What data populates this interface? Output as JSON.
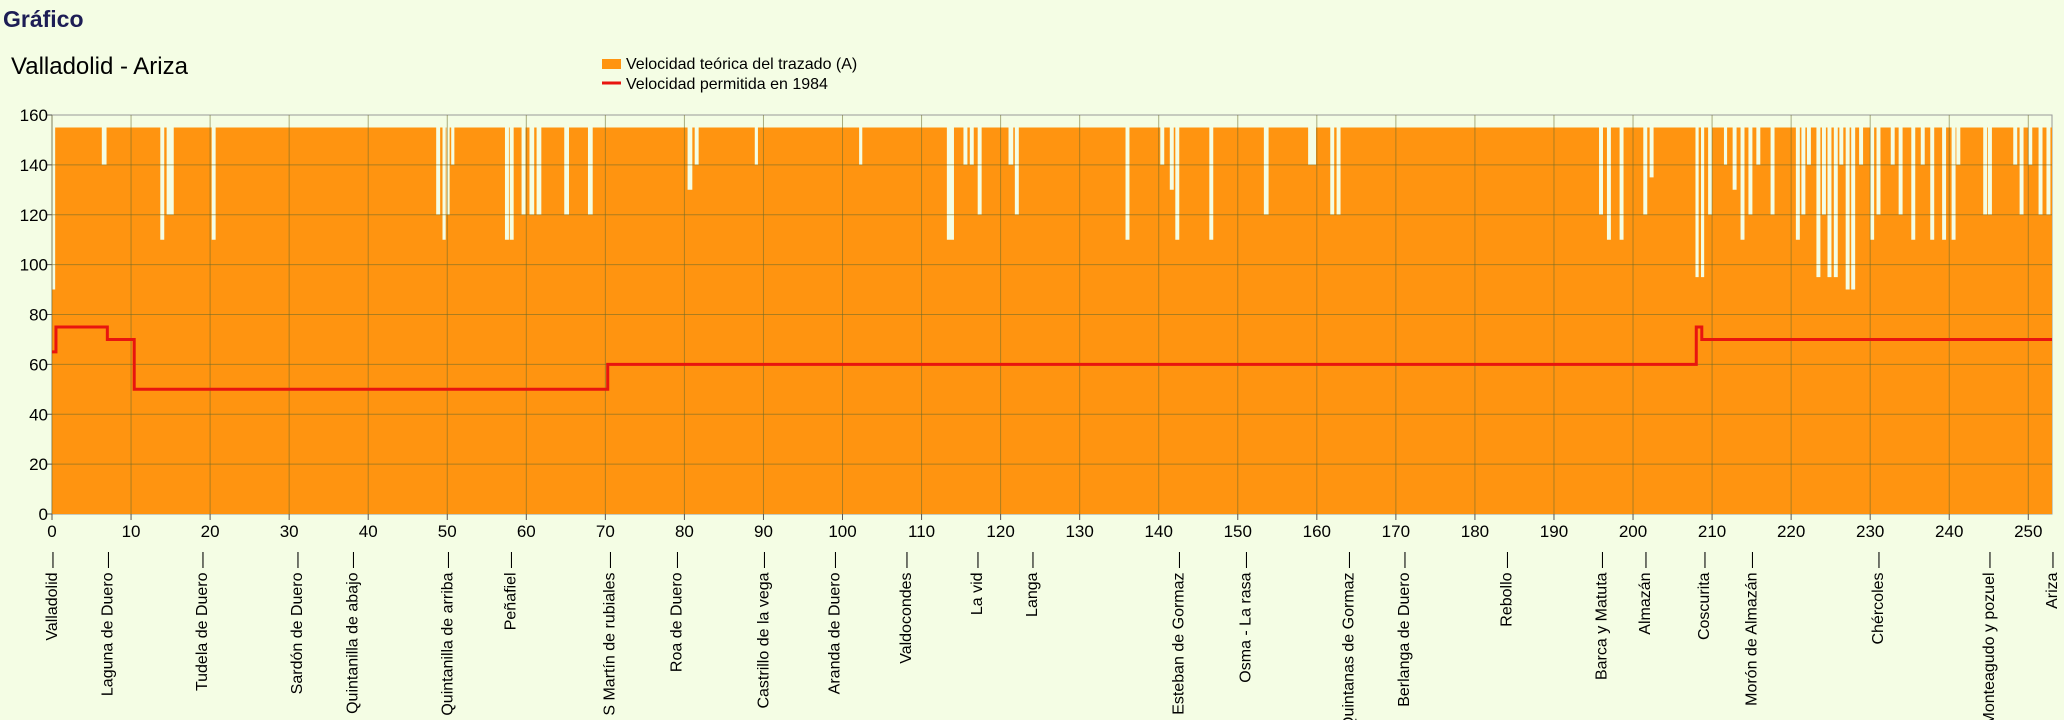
{
  "page": {
    "heading": "Gráfico"
  },
  "chart_data": {
    "type": "area",
    "title": "Valladolid - Ariza",
    "xlim": [
      0,
      253
    ],
    "ylim": [
      0,
      160
    ],
    "x_ticks": [
      0,
      10,
      20,
      30,
      40,
      50,
      60,
      70,
      80,
      90,
      100,
      110,
      120,
      130,
      140,
      150,
      160,
      170,
      180,
      190,
      200,
      210,
      220,
      230,
      240,
      250
    ],
    "y_ticks": [
      0,
      20,
      40,
      60,
      80,
      100,
      120,
      140,
      160
    ],
    "grid": true,
    "legend_position": "top",
    "colors": {
      "teorica": "#ff9410",
      "permitida": "#e8150f",
      "grid": "#6a6a2a",
      "background": "#f4fde4"
    },
    "series": [
      {
        "name": "Velocidad teórica del trazado (A)",
        "kind": "area",
        "base_value": 155,
        "dips": [
          [
            0.0,
            0.4,
            90
          ],
          [
            6.3,
            6.9,
            140
          ],
          [
            13.7,
            14.2,
            110
          ],
          [
            14.5,
            15.4,
            120
          ],
          [
            20.2,
            20.7,
            110
          ],
          [
            48.6,
            49.1,
            120
          ],
          [
            49.4,
            49.8,
            110
          ],
          [
            49.9,
            50.3,
            120
          ],
          [
            50.5,
            50.9,
            140
          ],
          [
            57.3,
            57.8,
            110
          ],
          [
            57.9,
            58.4,
            110
          ],
          [
            59.4,
            59.9,
            120
          ],
          [
            60.4,
            61.0,
            120
          ],
          [
            61.3,
            61.9,
            120
          ],
          [
            64.8,
            65.4,
            120
          ],
          [
            67.8,
            68.4,
            120
          ],
          [
            80.4,
            81.0,
            130
          ],
          [
            81.3,
            81.8,
            140
          ],
          [
            88.9,
            89.3,
            140
          ],
          [
            102.1,
            102.5,
            140
          ],
          [
            113.2,
            114.1,
            110
          ],
          [
            115.3,
            115.8,
            140
          ],
          [
            116.1,
            116.6,
            140
          ],
          [
            117.1,
            117.6,
            120
          ],
          [
            121.0,
            121.6,
            140
          ],
          [
            121.8,
            122.3,
            120
          ],
          [
            135.8,
            136.3,
            110
          ],
          [
            140.2,
            140.7,
            140
          ],
          [
            141.4,
            141.9,
            130
          ],
          [
            142.1,
            142.6,
            110
          ],
          [
            146.4,
            146.9,
            110
          ],
          [
            153.3,
            153.9,
            120
          ],
          [
            158.9,
            159.9,
            140
          ],
          [
            161.7,
            162.2,
            120
          ],
          [
            162.5,
            163.0,
            120
          ],
          [
            195.7,
            196.2,
            120
          ],
          [
            196.7,
            197.2,
            110
          ],
          [
            198.3,
            198.8,
            110
          ],
          [
            201.3,
            201.8,
            120
          ],
          [
            202.1,
            202.6,
            135
          ],
          [
            207.9,
            208.3,
            95
          ],
          [
            208.6,
            209.0,
            95
          ],
          [
            209.5,
            210.0,
            120
          ],
          [
            211.5,
            211.9,
            140
          ],
          [
            212.6,
            213.1,
            130
          ],
          [
            213.6,
            214.1,
            110
          ],
          [
            214.6,
            215.1,
            120
          ],
          [
            215.6,
            216.1,
            140
          ],
          [
            217.4,
            217.9,
            120
          ],
          [
            220.6,
            221.1,
            110
          ],
          [
            221.3,
            221.8,
            120
          ],
          [
            222.0,
            222.5,
            140
          ],
          [
            223.2,
            223.7,
            95
          ],
          [
            223.9,
            224.4,
            120
          ],
          [
            224.6,
            225.1,
            95
          ],
          [
            225.4,
            225.9,
            95
          ],
          [
            226.1,
            226.6,
            140
          ],
          [
            226.9,
            227.4,
            90
          ],
          [
            227.6,
            228.1,
            90
          ],
          [
            228.6,
            229.1,
            140
          ],
          [
            230.0,
            230.5,
            110
          ],
          [
            230.8,
            231.3,
            120
          ],
          [
            232.6,
            233.1,
            140
          ],
          [
            233.6,
            234.1,
            120
          ],
          [
            235.2,
            235.7,
            110
          ],
          [
            236.4,
            236.9,
            140
          ],
          [
            237.6,
            238.1,
            110
          ],
          [
            239.1,
            239.6,
            110
          ],
          [
            240.3,
            240.8,
            110
          ],
          [
            240.9,
            241.4,
            140
          ],
          [
            244.3,
            244.8,
            120
          ],
          [
            244.9,
            245.4,
            120
          ],
          [
            248.1,
            248.6,
            140
          ],
          [
            248.9,
            249.4,
            120
          ],
          [
            250.0,
            250.5,
            140
          ],
          [
            251.3,
            251.8,
            120
          ],
          [
            252.3,
            252.8,
            120
          ]
        ]
      },
      {
        "name": "Velocidad permitida en 1984",
        "kind": "step",
        "steps": [
          [
            0,
            0.5,
            65
          ],
          [
            0.5,
            7.0,
            75
          ],
          [
            7.0,
            10.4,
            70
          ],
          [
            10.4,
            70.3,
            50
          ],
          [
            70.3,
            208.0,
            60
          ],
          [
            208.0,
            208.7,
            75
          ],
          [
            208.7,
            253,
            70
          ]
        ]
      }
    ],
    "stations": [
      {
        "km": 0,
        "name": "Valladolid"
      },
      {
        "km": 7,
        "name": "Laguna de Duero"
      },
      {
        "km": 19,
        "name": "Tudela de Duero"
      },
      {
        "km": 31,
        "name": "Sardón de Duero"
      },
      {
        "km": 38,
        "name": "Quintanilla de abajo"
      },
      {
        "km": 50,
        "name": "Quintanilla de arriba"
      },
      {
        "km": 58,
        "name": "Peñafiel"
      },
      {
        "km": 70.5,
        "name": "S Martín de rubiales"
      },
      {
        "km": 79,
        "name": "Roa de Duero"
      },
      {
        "km": 90,
        "name": "Castrillo de la vega"
      },
      {
        "km": 99,
        "name": "Aranda de Duero"
      },
      {
        "km": 108,
        "name": "Valdocondes"
      },
      {
        "km": 117,
        "name": "La vid"
      },
      {
        "km": 124,
        "name": "Langa"
      },
      {
        "km": 142.5,
        "name": "S. Esteban de Gormaz"
      },
      {
        "km": 151,
        "name": "Osma - La rasa"
      },
      {
        "km": 164,
        "name": "Quintanas de Gormaz"
      },
      {
        "km": 171,
        "name": "Berlanga de Duero"
      },
      {
        "km": 184,
        "name": "Rebollo"
      },
      {
        "km": 196,
        "name": "Barca y Matuta"
      },
      {
        "km": 201.5,
        "name": "Almazán"
      },
      {
        "km": 209,
        "name": "Coscurita"
      },
      {
        "km": 215,
        "name": "Morón de Almazán"
      },
      {
        "km": 231,
        "name": "Chércoles"
      },
      {
        "km": 245,
        "name": "Monteagudo y pozuel"
      },
      {
        "km": 253,
        "name": "Ariza"
      }
    ]
  }
}
